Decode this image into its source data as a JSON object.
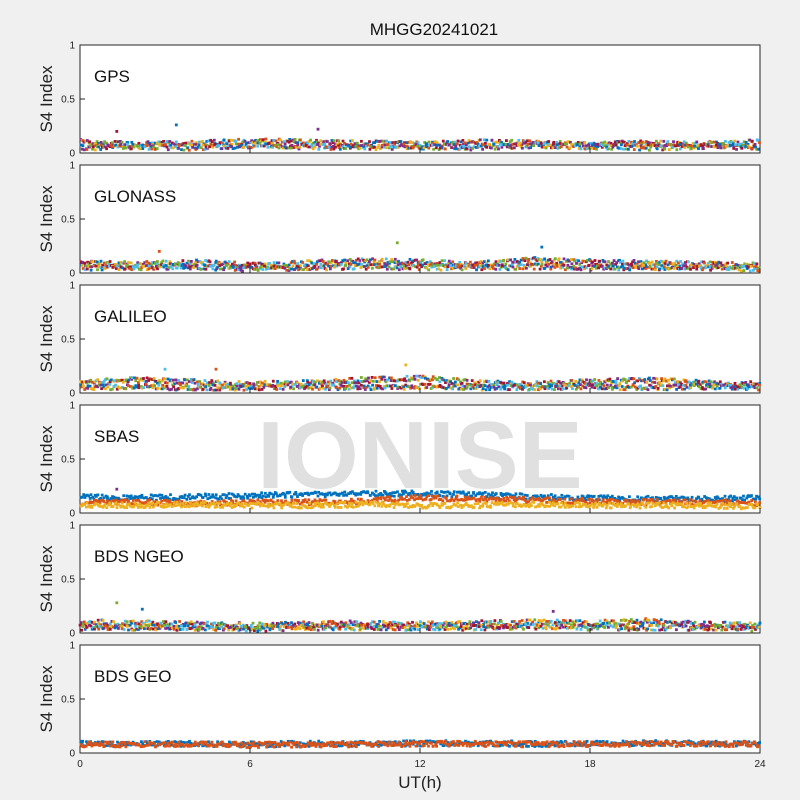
{
  "figure": {
    "title": "MHGG20241021",
    "xlabel": "UT(h)",
    "watermark": "IONISE"
  },
  "chart_data": {
    "type": "scatter",
    "title": "MHGG20241021",
    "xlabel": "UT(h)",
    "ylabel": "S4 Index",
    "xlim": [
      0,
      24
    ],
    "ylim": [
      0,
      1
    ],
    "xticks": [
      "0",
      "6",
      "12",
      "18",
      "24"
    ],
    "yticks": [
      "0",
      "0.5",
      "1"
    ],
    "grid": false,
    "colors": [
      "#0072BD",
      "#D95319",
      "#EDB120",
      "#7E2F8E",
      "#77AC30",
      "#4DBEEE",
      "#A2142F"
    ],
    "panels": [
      {
        "name": "GPS",
        "series": [
          {
            "x": [
              0,
              2,
              4,
              6,
              8,
              10,
              12,
              14,
              16,
              18,
              20,
              22,
              24
            ],
            "values": [
              0.1,
              0.08,
              0.09,
              0.11,
              0.1,
              0.09,
              0.08,
              0.1,
              0.09,
              0.08,
              0.09,
              0.08,
              0.1
            ]
          },
          {
            "x": [
              0,
              2,
              4,
              6,
              8,
              10,
              12,
              14,
              16,
              18,
              20,
              22,
              24
            ],
            "values": [
              0.05,
              0.06,
              0.05,
              0.07,
              0.06,
              0.05,
              0.06,
              0.05,
              0.07,
              0.06,
              0.05,
              0.06,
              0.05
            ]
          }
        ],
        "peaks": [
          {
            "x": 3.4,
            "y": 0.26
          },
          {
            "x": 8.4,
            "y": 0.22
          },
          {
            "x": 1.3,
            "y": 0.2
          }
        ]
      },
      {
        "name": "GLONASS",
        "series": [
          {
            "x": [
              0,
              2,
              4,
              6,
              8,
              10,
              12,
              14,
              16,
              18,
              20,
              22,
              24
            ],
            "values": [
              0.09,
              0.08,
              0.1,
              0.07,
              0.09,
              0.11,
              0.1,
              0.08,
              0.12,
              0.1,
              0.09,
              0.08,
              0.07
            ]
          },
          {
            "x": [
              0,
              2,
              4,
              6,
              8,
              10,
              12,
              14,
              16,
              18,
              20,
              22,
              24
            ],
            "values": [
              0.05,
              0.05,
              0.06,
              0.04,
              0.05,
              0.06,
              0.05,
              0.05,
              0.06,
              0.05,
              0.05,
              0.05,
              0.04
            ]
          }
        ],
        "peaks": [
          {
            "x": 2.8,
            "y": 0.2
          },
          {
            "x": 11.2,
            "y": 0.28
          },
          {
            "x": 16.3,
            "y": 0.24
          }
        ]
      },
      {
        "name": "GALILEO",
        "series": [
          {
            "x": [
              0,
              2,
              4,
              6,
              8,
              10,
              12,
              14,
              16,
              18,
              20,
              22,
              24
            ],
            "values": [
              0.1,
              0.12,
              0.1,
              0.08,
              0.09,
              0.12,
              0.14,
              0.09,
              0.08,
              0.1,
              0.12,
              0.09,
              0.08
            ]
          },
          {
            "x": [
              0,
              2,
              4,
              6,
              8,
              10,
              12,
              14,
              16,
              18,
              20,
              22,
              24
            ],
            "values": [
              0.05,
              0.06,
              0.05,
              0.05,
              0.06,
              0.05,
              0.06,
              0.05,
              0.05,
              0.06,
              0.05,
              0.06,
              0.05
            ]
          }
        ],
        "peaks": [
          {
            "x": 11.5,
            "y": 0.26
          },
          {
            "x": 3.0,
            "y": 0.22
          },
          {
            "x": 4.8,
            "y": 0.22
          }
        ]
      },
      {
        "name": "SBAS",
        "series": [
          {
            "x": [
              0,
              2,
              4,
              6,
              8,
              10,
              12,
              14,
              16,
              18,
              20,
              22,
              24
            ],
            "values": [
              0.15,
              0.14,
              0.15,
              0.16,
              0.17,
              0.18,
              0.18,
              0.17,
              0.15,
              0.14,
              0.13,
              0.13,
              0.14
            ]
          },
          {
            "x": [
              0,
              2,
              4,
              6,
              8,
              10,
              12,
              14,
              16,
              18,
              20,
              22,
              24
            ],
            "values": [
              0.09,
              0.1,
              0.09,
              0.1,
              0.1,
              0.11,
              0.14,
              0.13,
              0.12,
              0.11,
              0.1,
              0.1,
              0.09
            ]
          },
          {
            "x": [
              0,
              2,
              4,
              6,
              8,
              10,
              12,
              14,
              16,
              18,
              20,
              22,
              24
            ],
            "values": [
              0.07,
              0.07,
              0.08,
              0.07,
              0.07,
              0.08,
              0.07,
              0.07,
              0.08,
              0.07,
              0.07,
              0.07,
              0.06
            ]
          }
        ],
        "peaks": [
          {
            "x": 1.3,
            "y": 0.22
          }
        ]
      },
      {
        "name": "BDS NGEO",
        "series": [
          {
            "x": [
              0,
              2,
              4,
              6,
              8,
              10,
              12,
              14,
              16,
              18,
              20,
              22,
              24
            ],
            "values": [
              0.1,
              0.09,
              0.08,
              0.07,
              0.08,
              0.09,
              0.08,
              0.09,
              0.1,
              0.09,
              0.11,
              0.08,
              0.07
            ]
          },
          {
            "x": [
              0,
              2,
              4,
              6,
              8,
              10,
              12,
              14,
              16,
              18,
              20,
              22,
              24
            ],
            "values": [
              0.05,
              0.05,
              0.05,
              0.04,
              0.05,
              0.05,
              0.05,
              0.05,
              0.06,
              0.05,
              0.05,
              0.05,
              0.04
            ]
          }
        ],
        "peaks": [
          {
            "x": 1.3,
            "y": 0.28
          },
          {
            "x": 2.2,
            "y": 0.22
          },
          {
            "x": 16.7,
            "y": 0.2
          }
        ]
      },
      {
        "name": "BDS GEO",
        "series": [
          {
            "x": [
              0,
              2,
              4,
              6,
              8,
              10,
              12,
              14,
              16,
              18,
              20,
              22,
              24
            ],
            "values": [
              0.085,
              0.085,
              0.085,
              0.08,
              0.085,
              0.085,
              0.09,
              0.09,
              0.085,
              0.085,
              0.09,
              0.09,
              0.085
            ]
          },
          {
            "x": [
              0,
              2,
              4,
              6,
              8,
              10,
              12,
              14,
              16,
              18,
              20,
              22,
              24
            ],
            "values": [
              0.08,
              0.08,
              0.08,
              0.075,
              0.08,
              0.08,
              0.085,
              0.085,
              0.08,
              0.08,
              0.085,
              0.085,
              0.08
            ]
          }
        ],
        "peaks": []
      }
    ]
  }
}
